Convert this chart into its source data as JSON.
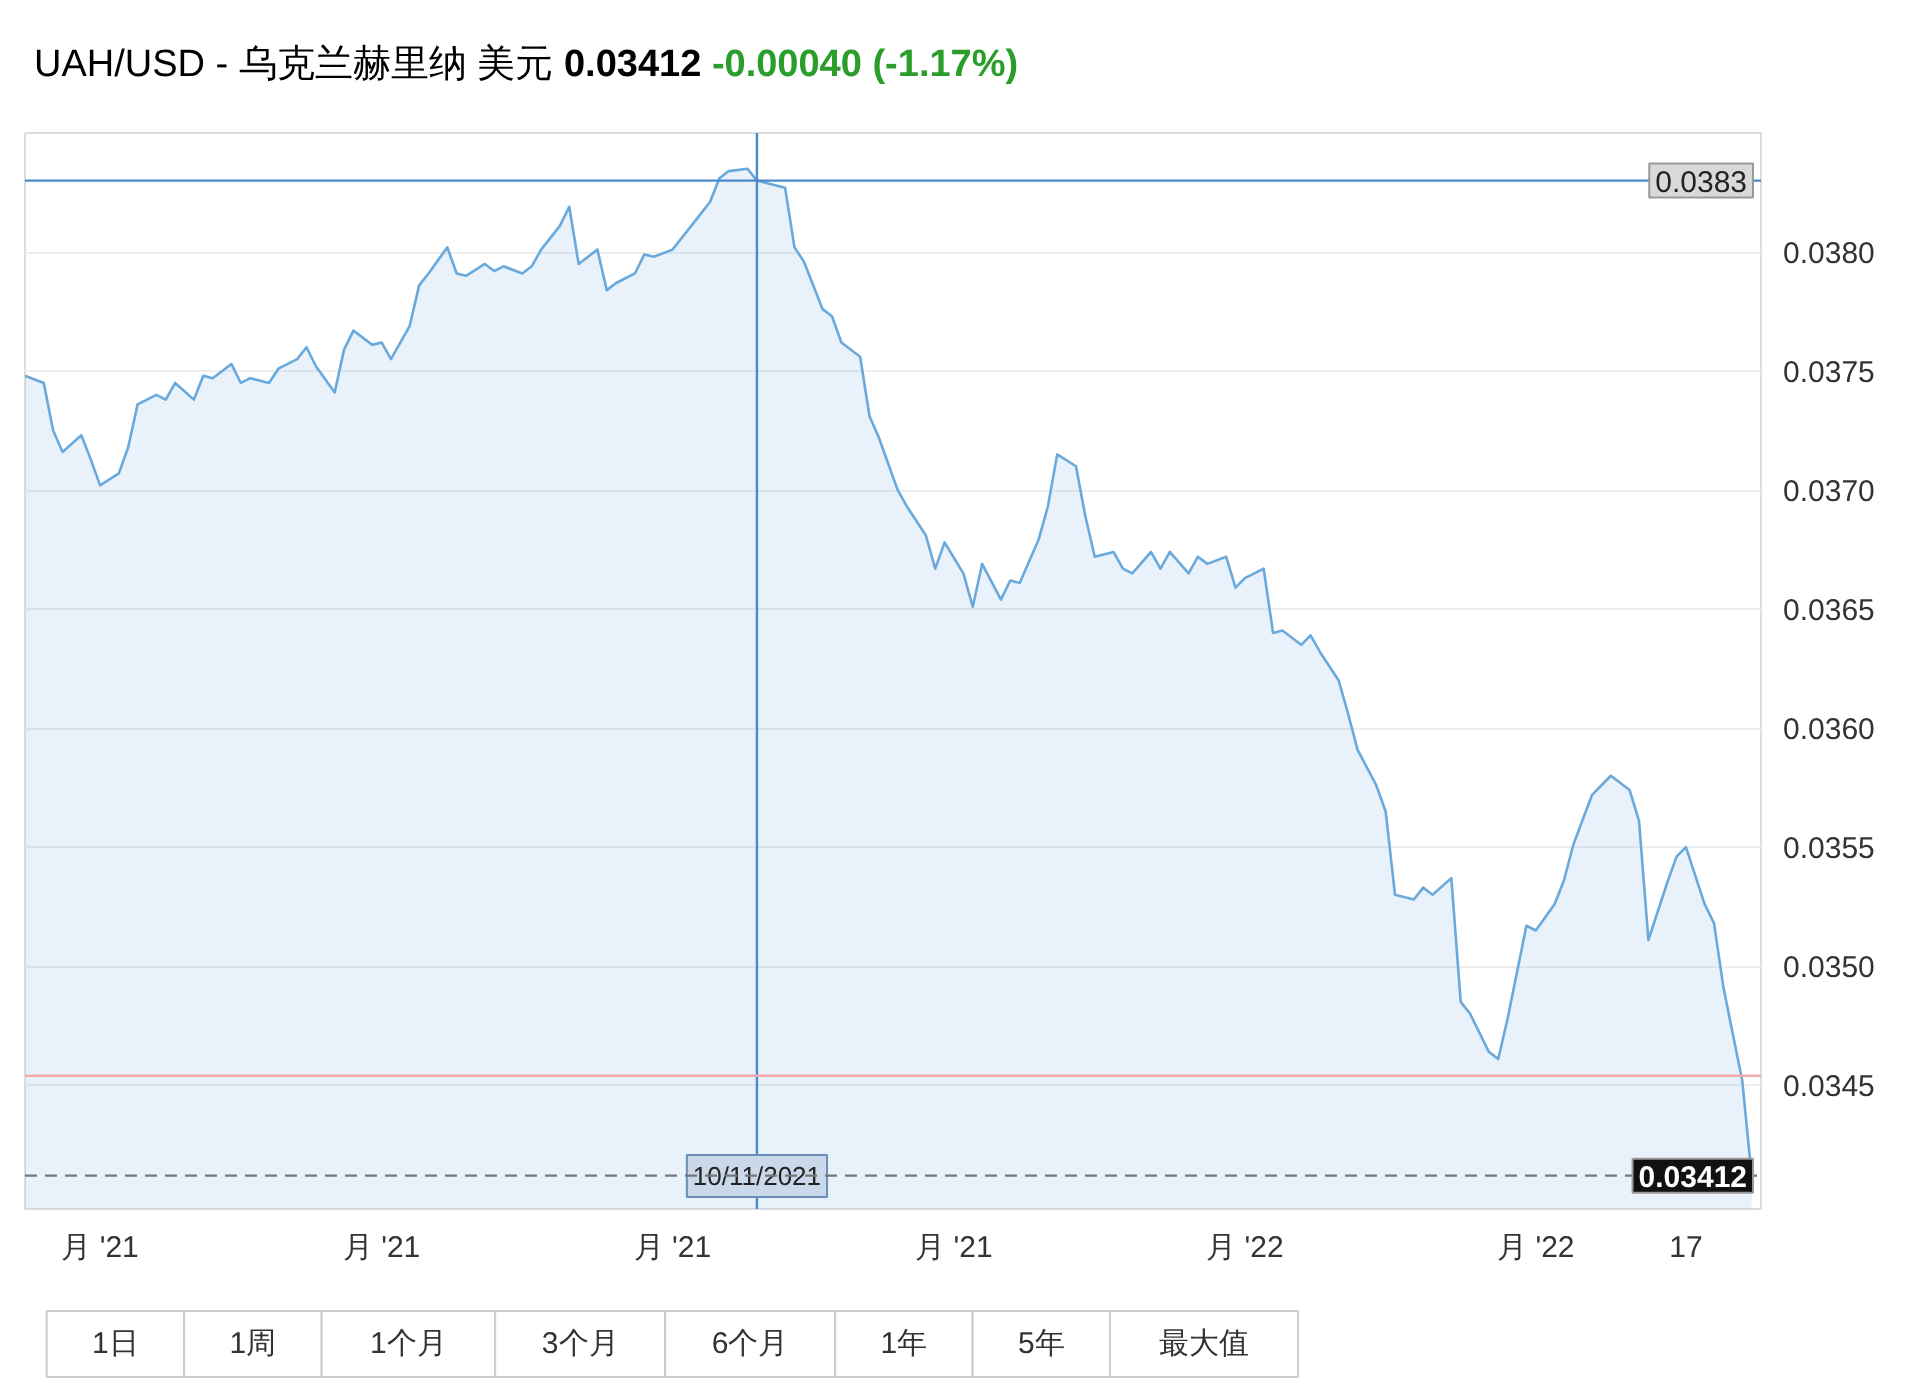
{
  "chart_data": {
    "type": "area",
    "title": "UAH/USD - 乌克兰赫里纳 美元",
    "annotations": [
      "0.03412",
      "-0.00040",
      "(-1.17%)",
      "1日",
      "1周",
      "1个月",
      "3个月",
      "6个月",
      "1年",
      "5年",
      "最大值"
    ],
    "x": [
      "2021-08-24",
      "2021-08-26",
      "2021-08-27",
      "2021-08-28",
      "2021-08-30",
      "2021-08-31",
      "2021-09-01",
      "2021-09-03",
      "2021-09-04",
      "2021-09-05",
      "2021-09-07",
      "2021-09-08",
      "2021-09-09",
      "2021-09-11",
      "2021-09-12",
      "2021-09-13",
      "2021-09-15",
      "2021-09-16",
      "2021-09-17",
      "2021-09-19",
      "2021-09-20",
      "2021-09-22",
      "2021-09-23",
      "2021-09-24",
      "2021-09-26",
      "2021-09-27",
      "2021-09-28",
      "2021-09-30",
      "2021-10-01",
      "2021-10-02",
      "2021-10-04",
      "2021-10-05",
      "2021-10-06",
      "2021-10-08",
      "2021-10-09",
      "2021-10-10",
      "2021-10-12",
      "2021-10-13",
      "2021-10-14",
      "2021-10-16",
      "2021-10-17",
      "2021-10-18",
      "2021-10-20",
      "2021-10-21",
      "2021-10-22",
      "2021-10-24",
      "2021-10-25",
      "2021-10-26",
      "2021-10-28",
      "2021-10-29",
      "2021-10-30",
      "2021-11-01",
      "2021-11-02",
      "2021-11-03",
      "2021-11-05",
      "2021-11-06",
      "2021-11-07",
      "2021-11-09",
      "2021-11-10",
      "2021-11-11",
      "2021-11-13",
      "2021-11-14",
      "2021-11-15",
      "2021-11-17",
      "2021-11-18",
      "2021-11-19",
      "2021-11-21",
      "2021-11-22",
      "2021-11-23",
      "2021-11-25",
      "2021-11-26",
      "2021-11-28",
      "2021-11-29",
      "2021-11-30",
      "2021-12-02",
      "2021-12-03",
      "2021-12-04",
      "2021-12-06",
      "2021-12-07",
      "2021-12-08",
      "2021-12-10",
      "2021-12-11",
      "2021-12-12",
      "2021-12-14",
      "2021-12-15",
      "2021-12-16",
      "2021-12-18",
      "2021-12-19",
      "2021-12-20",
      "2021-12-22",
      "2021-12-23",
      "2021-12-24",
      "2021-12-26",
      "2021-12-27",
      "2021-12-28",
      "2021-12-30",
      "2021-12-31",
      "2022-01-01",
      "2022-01-03",
      "2022-01-04",
      "2022-01-05",
      "2022-01-07",
      "2022-01-08",
      "2022-01-09",
      "2022-01-11",
      "2022-01-12",
      "2022-01-13",
      "2022-01-15",
      "2022-01-16",
      "2022-01-17",
      "2022-01-19",
      "2022-01-20",
      "2022-01-21",
      "2022-01-23",
      "2022-01-24",
      "2022-01-25",
      "2022-01-27",
      "2022-01-28",
      "2022-01-29",
      "2022-01-31",
      "2022-02-01",
      "2022-02-03",
      "2022-02-04",
      "2022-02-05",
      "2022-02-07",
      "2022-02-08",
      "2022-02-09",
      "2022-02-11",
      "2022-02-12",
      "2022-02-13",
      "2022-02-15",
      "2022-02-16",
      "2022-02-17",
      "2022-02-19",
      "2022-02-20",
      "2022-02-21",
      "2022-02-23",
      "2022-02-24"
    ],
    "series": [
      {
        "color": "#6aa9dc",
        "values": [
          0.03748,
          0.03745,
          0.03725,
          0.03716,
          0.03723,
          0.03713,
          0.03702,
          0.03707,
          0.03718,
          0.03736,
          0.0374,
          0.03738,
          0.03745,
          0.03738,
          0.03748,
          0.03747,
          0.03753,
          0.03745,
          0.03747,
          0.03745,
          0.03751,
          0.03755,
          0.0376,
          0.03752,
          0.03741,
          0.03759,
          0.03767,
          0.03761,
          0.03762,
          0.03755,
          0.03769,
          0.03786,
          0.03791,
          0.03802,
          0.03791,
          0.0379,
          0.03795,
          0.03792,
          0.03794,
          0.03791,
          0.03794,
          0.03801,
          0.03811,
          0.03819,
          0.03795,
          0.03801,
          0.03784,
          0.03787,
          0.03791,
          0.03799,
          0.03798,
          0.03801,
          0.03806,
          0.03811,
          0.03821,
          0.03831,
          0.03834,
          0.03835,
          0.0383,
          0.03829,
          0.03827,
          0.03802,
          0.03796,
          0.03776,
          0.03773,
          0.03762,
          0.03756,
          0.03731,
          0.03722,
          0.037,
          0.03693,
          0.03681,
          0.03667,
          0.03678,
          0.03665,
          0.03651,
          0.03669,
          0.03654,
          0.03662,
          0.03661,
          0.03679,
          0.03693,
          0.03715,
          0.0371,
          0.03689,
          0.03672,
          0.03674,
          0.03667,
          0.03665,
          0.03674,
          0.03667,
          0.03674,
          0.03665,
          0.03672,
          0.03669,
          0.03672,
          0.03659,
          0.03663,
          0.03667,
          0.0364,
          0.03641,
          0.03635,
          0.03639,
          0.03632,
          0.0362,
          0.03606,
          0.03591,
          0.03576,
          0.03565,
          0.0353,
          0.03528,
          0.03533,
          0.0353,
          0.03537,
          0.03485,
          0.0348,
          0.03464,
          0.03461,
          0.03478,
          0.03517,
          0.03515,
          0.03526,
          0.03536,
          0.03551,
          0.03572,
          0.03576,
          0.0358,
          0.03574,
          0.03561,
          0.03511,
          0.03535,
          0.03546,
          0.0355,
          0.03526,
          0.03518,
          0.03491,
          0.03452,
          0.03412
        ]
      }
    ],
    "xlim": [
      "2021-08-24",
      "2022-02-25"
    ],
    "xticks": [
      {
        "value": "2021-09-01",
        "label": "月 '21"
      },
      {
        "value": "2021-10-01",
        "label": "月 '21"
      },
      {
        "value": "2021-11-01",
        "label": "月 '21"
      },
      {
        "value": "2021-12-01",
        "label": "月 '21"
      },
      {
        "value": "2022-01-01",
        "label": "月 '22"
      },
      {
        "value": "2022-02-01",
        "label": "月 '22"
      },
      {
        "value": "2022-02-17",
        "label": "17"
      }
    ],
    "ylim": [
      0.03398,
      0.0385
    ],
    "yticks": [
      {
        "value": 0.0345,
        "label": "0.0345"
      },
      {
        "value": 0.035,
        "label": "0.0350"
      },
      {
        "value": 0.0355,
        "label": "0.0355"
      },
      {
        "value": 0.036,
        "label": "0.0360"
      },
      {
        "value": 0.0365,
        "label": "0.0365"
      },
      {
        "value": 0.037,
        "label": "0.0370"
      },
      {
        "value": 0.0375,
        "label": "0.0375"
      },
      {
        "value": 0.038,
        "label": "0.0380"
      }
    ],
    "grid": "y",
    "ref_lines": [
      {
        "axis": "y",
        "value": 0.0383,
        "label": "0.0383",
        "color": "#4a8ac8"
      },
      {
        "axis": "x",
        "value": "2021-11-10",
        "label": "10/11/2021",
        "color": "#4a8ac8"
      },
      {
        "axis": "y",
        "value": 0.03454,
        "color": "#f2a9a9"
      },
      {
        "axis": "y",
        "value": 0.03412,
        "label": "0.03412",
        "color": "#777777",
        "line_style": "dashed"
      }
    ]
  }
}
